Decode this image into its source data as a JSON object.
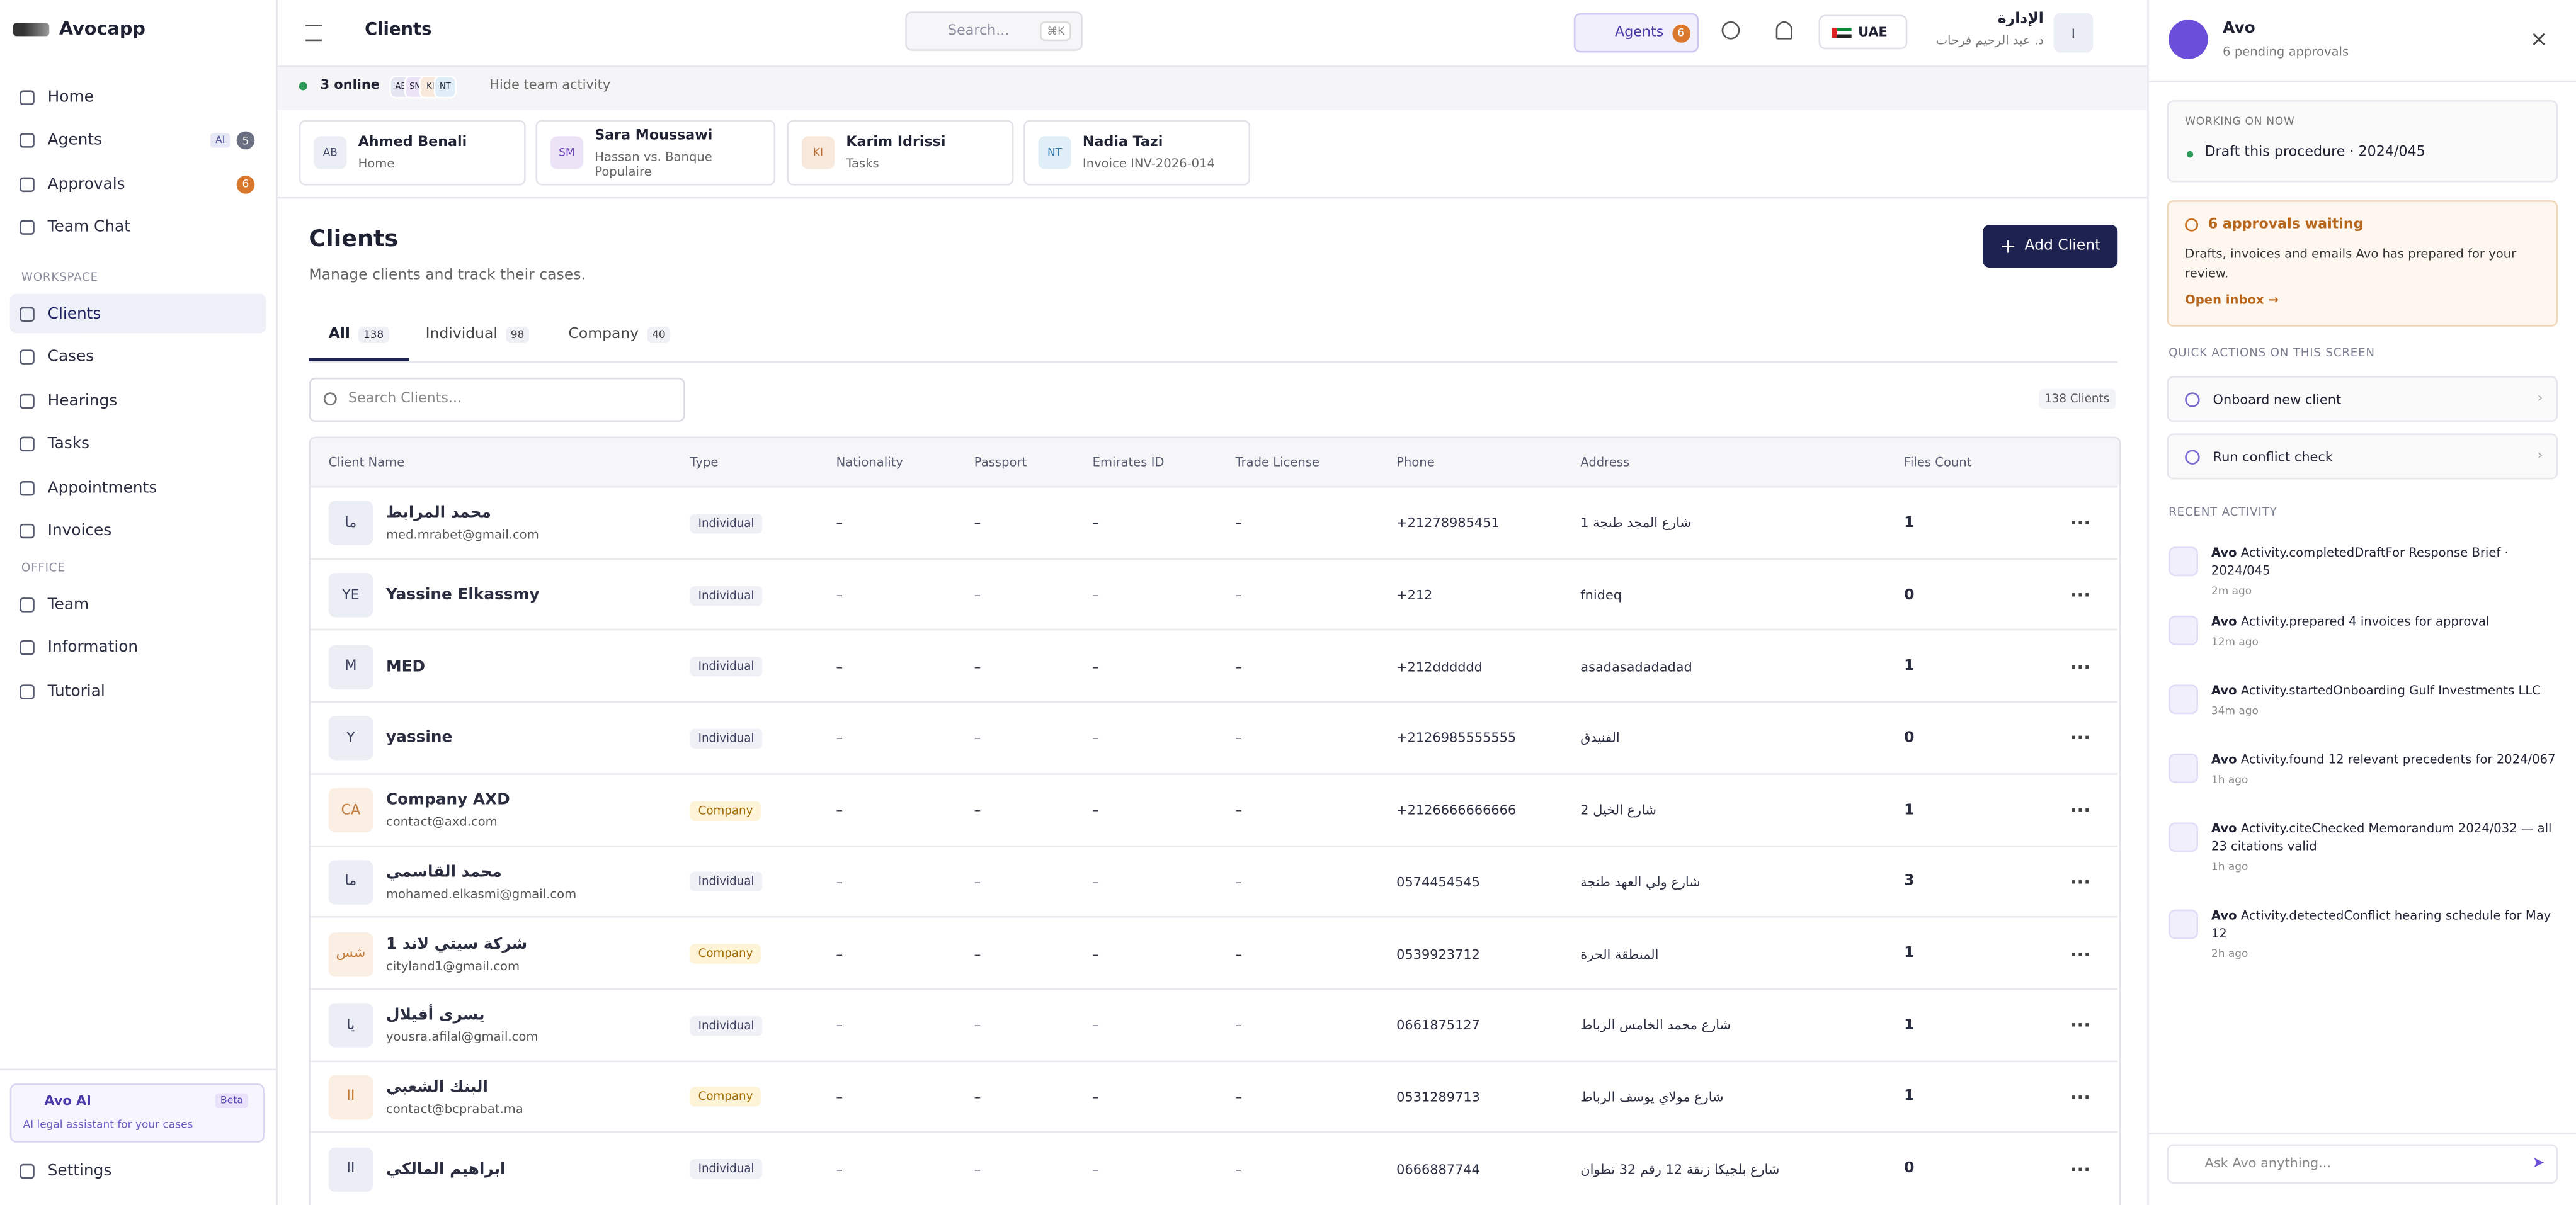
{
  "app_name": "Avocapp",
  "sidebar": {
    "nav": [
      {
        "label": "Home"
      },
      {
        "label": "Agents",
        "tag": "AI",
        "badge": 5
      },
      {
        "label": "Approvals",
        "badge": 6
      },
      {
        "label": "Team Chat"
      }
    ],
    "sections": [
      {
        "title": "WORKSPACE",
        "items": [
          "Clients",
          "Cases",
          "Hearings",
          "Tasks",
          "Appointments",
          "Invoices"
        ]
      },
      {
        "title": "OFFICE",
        "items": [
          "Team",
          "Information",
          "Tutorial"
        ]
      }
    ],
    "promo": {
      "title": "Avo AI",
      "badge": "Beta",
      "text": "AI legal assistant for your cases"
    },
    "settings": "Settings"
  },
  "topbar": {
    "title": "Clients",
    "search": "Search...",
    "shortcut": "⌘K",
    "agents": "Agents",
    "agents_count": 6,
    "region": "UAE",
    "user_name": "الإدارة",
    "user_sub": "د. عبد الرحيم فرحات",
    "avatar": "I"
  },
  "team": {
    "online": "3 online",
    "avatars": [
      "AB",
      "SM",
      "KI",
      "NT"
    ],
    "hide": "Hide team activity",
    "members": [
      {
        "initials": "AB",
        "name": "Ahmed Benali",
        "activity": "Home"
      },
      {
        "initials": "SM",
        "name": "Sara Moussawi",
        "activity": "Hassan vs. Banque Populaire"
      },
      {
        "initials": "KI",
        "name": "Karim Idrissi",
        "activity": "Tasks"
      },
      {
        "initials": "NT",
        "name": "Nadia Tazi",
        "activity": "Invoice INV-2026-014"
      }
    ]
  },
  "page": {
    "title": "Clients",
    "subtitle": "Manage clients and track their cases.",
    "add": "Add Client",
    "tabs": [
      {
        "label": "All",
        "count": 138
      },
      {
        "label": "Individual",
        "count": 98
      },
      {
        "label": "Company",
        "count": 40
      }
    ],
    "search": "Search Clients...",
    "total": "138 Clients"
  },
  "table": {
    "columns": [
      "Client Name",
      "Type",
      "Nationality",
      "Passport",
      "Emirates ID",
      "Trade License",
      "Phone",
      "Address",
      "Files Count"
    ],
    "rows": [
      {
        "initials": "ما",
        "name": "محمد المرابط",
        "email": "med.mrabet@gmail.com",
        "type": "Individual",
        "nationality": "–",
        "passport": "–",
        "emirates_id": "–",
        "trade_license": "–",
        "phone": "+21278985451",
        "address": "شارع المجد طنجة 1",
        "files": 1
      },
      {
        "initials": "YE",
        "name": "Yassine Elkassmy",
        "type": "Individual",
        "nationality": "–",
        "passport": "–",
        "emirates_id": "–",
        "trade_license": "–",
        "phone": "+212",
        "address": "fnideq",
        "files": 0
      },
      {
        "initials": "M",
        "name": "MED",
        "type": "Individual",
        "nationality": "–",
        "passport": "–",
        "emirates_id": "–",
        "trade_license": "–",
        "phone": "+212dddddd",
        "address": "asadasadadadad",
        "files": 1
      },
      {
        "initials": "Y",
        "name": "yassine",
        "type": "Individual",
        "nationality": "–",
        "passport": "–",
        "emirates_id": "–",
        "trade_license": "–",
        "phone": "+2126985555555",
        "address": "الفنيدق",
        "files": 0
      },
      {
        "initials": "CA",
        "name": "Company AXD",
        "email": "contact@axd.com",
        "type": "Company",
        "nationality": "–",
        "passport": "–",
        "emirates_id": "–",
        "trade_license": "–",
        "phone": "+2126666666666",
        "address": "شارع الخيل 2",
        "files": 1
      },
      {
        "initials": "ما",
        "name": "محمد القاسمي",
        "email": "mohamed.elkasmi@gmail.com",
        "type": "Individual",
        "nationality": "–",
        "passport": "–",
        "emirates_id": "–",
        "trade_license": "–",
        "phone": "0574454545",
        "address": "شارع ولي العهد طنجة",
        "files": 3
      },
      {
        "initials": "شس",
        "name": "شركة سيتي لاند 1",
        "email": "cityland1@gmail.com",
        "type": "Company",
        "nationality": "–",
        "passport": "–",
        "emirates_id": "–",
        "trade_license": "–",
        "phone": "0539923712",
        "address": "المنطقة الحرة",
        "files": 1
      },
      {
        "initials": "يا",
        "name": "يسرى أفيلال",
        "email": "yousra.afilal@gmail.com",
        "type": "Individual",
        "nationality": "–",
        "passport": "–",
        "emirates_id": "–",
        "trade_license": "–",
        "phone": "0661875127",
        "address": "شارع محمد الخامس الرباط",
        "files": 1
      },
      {
        "initials": "II",
        "name": "البنك الشعبي",
        "email": "contact@bcprabat.ma",
        "type": "Company",
        "nationality": "–",
        "passport": "–",
        "emirates_id": "–",
        "trade_license": "–",
        "phone": "0531289713",
        "address": "شارع مولاي يوسف الرباط",
        "files": 1
      },
      {
        "initials": "II",
        "name": "ابراهيم المالكي",
        "type": "Individual",
        "nationality": "–",
        "passport": "–",
        "emirates_id": "–",
        "trade_license": "–",
        "phone": "0666887744",
        "address": "شارع بلجيكا زنقة 12 رقم 32 تطوان",
        "files": 0
      }
    ]
  },
  "panel": {
    "title": "Avo",
    "subtitle": "6 pending approvals",
    "working_label": "WORKING ON NOW",
    "working": "Draft this procedure · 2024/045",
    "approvals_title": "6 approvals waiting",
    "approvals_text": "Drafts, invoices and emails Avo has prepared for your review.",
    "approvals_link": "Open inbox →",
    "quick_label": "QUICK ACTIONS ON THIS SCREEN",
    "quick": [
      "Onboard new client",
      "Run conflict check"
    ],
    "recent_label": "RECENT ACTIVITY",
    "activity": [
      {
        "actor": "Avo",
        "text": "Activity.completedDraftFor Response Brief · 2024/045",
        "time": "2m ago"
      },
      {
        "actor": "Avo",
        "text": "Activity.prepared 4 invoices for approval",
        "time": "12m ago"
      },
      {
        "actor": "Avo",
        "text": "Activity.startedOnboarding Gulf Investments LLC",
        "time": "34m ago"
      },
      {
        "actor": "Avo",
        "text": "Activity.found 12 relevant precedents for 2024/067",
        "time": "1h ago"
      },
      {
        "actor": "Avo",
        "text": "Activity.citeChecked Memorandum 2024/032 — all 23 citations valid",
        "time": "1h ago"
      },
      {
        "actor": "Avo",
        "text": "Activity.detectedConflict hearing schedule for May 12",
        "time": "2h ago"
      }
    ],
    "ask": "Ask Avo anything..."
  }
}
